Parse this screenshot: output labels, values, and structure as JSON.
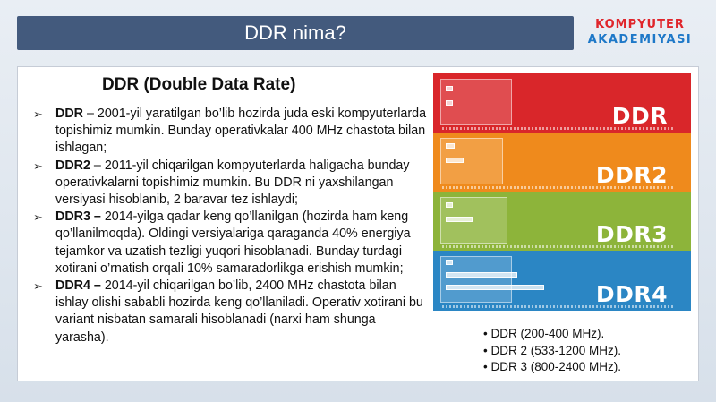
{
  "header": {
    "title": "DDR nima?"
  },
  "logo": {
    "line1": "KOMPYUTER",
    "line2": "AKADEMIYASI",
    "colors": {
      "red": "#e0252b",
      "blue": "#1e78c8"
    }
  },
  "slide": {
    "heading": "DDR (Double Data Rate)",
    "bullets": [
      {
        "term": "DDR",
        "text": " – 2001-yil yaratilgan bo’lib hozirda juda eski kompyuterlarda topishimiz mumkin. Bunday operativkalar 400 MHz chastota bilan ishlagan;"
      },
      {
        "term": "DDR2",
        "text": " – 2011-yil chiqarilgan kompyuterlarda haligacha bunday operativkalarni topishimiz mumkin. Bu DDR ni yaxshilangan versiyasi hisoblanib, 2 baravar tez ishlaydi;"
      },
      {
        "term": "DDR3 –",
        "text": " 2014-yilga qadar keng qo’llanilgan (hozirda ham keng qo’llanilmoqda). Oldingi versiyalariga qaraganda 40% energiya tejamkor va uzatish tezligi yuqori hisoblanadi. Bunday turdagi xotirani o’rnatish orqali 10% samaradorlikga erishish mumkin;"
      },
      {
        "term": "DDR4 –",
        "text": " 2014-yil chiqarilgan bo’lib, 2400 MHz chastota bilan ishlay olishi sababli hozirda keng qo’llaniladi. Operativ xotirani bu variant nisbatan samarali hisoblanadi (narxi ham shunga yarasha)."
      }
    ],
    "bullet_marker": "➢"
  },
  "ram_image": {
    "bands": [
      {
        "label": "DDR",
        "color": "#d9262a"
      },
      {
        "label": "DDR2",
        "color": "#ef8a1c"
      },
      {
        "label": "DDR3",
        "color": "#8db43a"
      },
      {
        "label": "DDR4",
        "color": "#2b86c4"
      }
    ]
  },
  "frequencies": [
    "• DDR (200-400 MHz).",
    "• DDR 2 (533-1200 MHz).",
    "• DDR 3 (800-2400 MHz)."
  ]
}
